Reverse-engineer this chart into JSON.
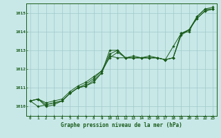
{
  "bg_color": "#c8e8e8",
  "grid_color": "#a0c8c8",
  "line_color": "#1a5c1a",
  "marker_color": "#1a5c1a",
  "title": "Graphe pression niveau de la mer (hPa)",
  "hours": [
    0,
    1,
    2,
    3,
    4,
    5,
    6,
    7,
    8,
    9,
    10,
    11,
    12,
    13,
    14,
    15,
    16,
    17,
    18,
    19,
    20,
    21,
    22,
    23
  ],
  "xlim": [
    -0.5,
    23.5
  ],
  "ylim": [
    1009.5,
    1015.5
  ],
  "yticks": [
    1010,
    1011,
    1012,
    1013,
    1014,
    1015
  ],
  "series": [
    [
      1010.3,
      1010.4,
      1010.0,
      1010.1,
      1010.3,
      1010.7,
      1011.0,
      1011.1,
      1011.3,
      1011.8,
      1013.0,
      1013.0,
      1012.6,
      1012.6,
      1012.6,
      1012.6,
      1012.6,
      1012.5,
      1013.2,
      1013.9,
      1014.1,
      1014.7,
      1015.1,
      1015.2
    ],
    [
      1010.3,
      1010.4,
      1010.1,
      1010.2,
      1010.3,
      1010.7,
      1011.0,
      1011.1,
      1011.4,
      1011.8,
      1012.7,
      1012.6,
      1012.6,
      1012.6,
      1012.6,
      1012.6,
      1012.6,
      1012.5,
      1012.6,
      1013.9,
      1014.0,
      1014.8,
      1015.2,
      1015.2
    ],
    [
      1010.3,
      1010.0,
      1010.1,
      1010.2,
      1010.3,
      1010.7,
      1011.0,
      1011.2,
      1011.5,
      1011.9,
      1012.6,
      1012.9,
      1012.6,
      1012.7,
      1012.6,
      1012.6,
      1012.6,
      1012.5,
      1012.6,
      1013.8,
      1014.1,
      1014.8,
      1015.2,
      1015.3
    ],
    [
      1010.3,
      1010.4,
      1010.2,
      1010.3,
      1010.4,
      1010.8,
      1011.1,
      1011.3,
      1011.6,
      1011.9,
      1012.8,
      1013.0,
      1012.6,
      1012.6,
      1012.6,
      1012.7,
      1012.6,
      1012.5,
      1012.6,
      1013.9,
      1014.1,
      1014.7,
      1015.1,
      1015.2
    ]
  ]
}
